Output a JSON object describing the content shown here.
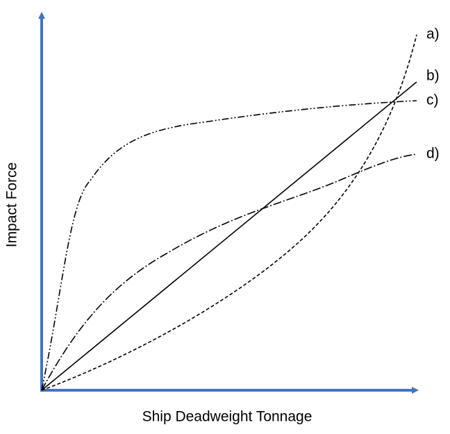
{
  "axes": {
    "x_label": "Ship Deadweight Tonnage",
    "y_label": "Impact Force"
  },
  "curves": [
    {
      "label": "a)"
    },
    {
      "label": "b)"
    },
    {
      "label": "c)"
    },
    {
      "label": "d)"
    }
  ]
}
